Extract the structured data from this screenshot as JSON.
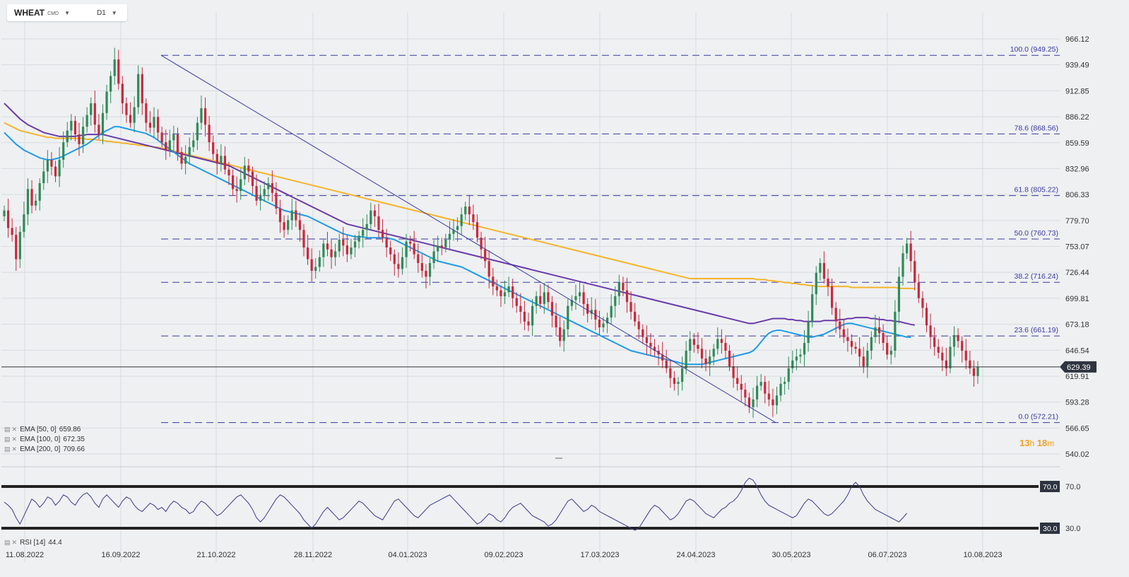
{
  "toolbar": {
    "symbol": "WHEAT",
    "symbol_sub": "CMD",
    "timeframe": "D1"
  },
  "indicators": {
    "ema50": {
      "label": "EMA [50, 0]",
      "value": "659.86",
      "color": "#1e9be6"
    },
    "ema100": {
      "label": "EMA [100, 0]",
      "value": "672.35",
      "color": "#6a3aa8"
    },
    "ema200": {
      "label": "EMA [200, 0]",
      "value": "709.66",
      "color": "#f5b428"
    },
    "rsi": {
      "label": "RSI [14]",
      "value": "44.4",
      "color": "#3a3a8a",
      "upper": "70.0",
      "lower": "30.0"
    }
  },
  "timer": {
    "hours": "13",
    "h_unit": "h",
    "minutes": "18",
    "m_unit": "m"
  },
  "colors": {
    "bull": "#2e8b57",
    "bear": "#c8283c",
    "fib": "#3a3aa0",
    "grid": "#d8dce0"
  },
  "chart_data": {
    "type": "candlestick",
    "symbol": "WHEAT",
    "timeframe": "D1",
    "current_price": "629.39",
    "ylim": [
      540.02,
      966.12
    ],
    "y_ticks": [
      "966.12",
      "939.49",
      "912.85",
      "886.22",
      "859.59",
      "832.96",
      "806.33",
      "779.70",
      "753.07",
      "726.44",
      "699.81",
      "673.18",
      "646.54",
      "619.91",
      "593.28",
      "566.65",
      "540.02"
    ],
    "x_ticks": [
      "11.08.2022",
      "16.09.2022",
      "21.10.2022",
      "28.11.2022",
      "04.01.2023",
      "09.02.2023",
      "17.03.2023",
      "24.04.2023",
      "30.05.2023",
      "06.07.2023",
      "10.08.2023"
    ],
    "fibonacci": [
      {
        "label": "100.0 (949.25)",
        "value": 949.25
      },
      {
        "label": "78.6 (868.56)",
        "value": 868.56
      },
      {
        "label": "61.8 (805.22)",
        "value": 805.22
      },
      {
        "label": "50.0 (760.73)",
        "value": 760.73
      },
      {
        "label": "38.2 (716.24)",
        "value": 716.24
      },
      {
        "label": "23.6 (661.19)",
        "value": 661.19
      },
      {
        "label": "0.0 (572.21)",
        "value": 572.21
      }
    ],
    "trendline": {
      "from": {
        "date": "05.10.2022",
        "value": 949.25
      },
      "to": {
        "date": "31.05.2023",
        "value": 572.21
      }
    },
    "close_series": [
      790,
      772,
      765,
      740,
      768,
      786,
      812,
      795,
      800,
      818,
      830,
      842,
      835,
      825,
      842,
      860,
      872,
      882,
      868,
      858,
      876,
      888,
      900,
      878,
      868,
      890,
      912,
      928,
      945,
      920,
      900,
      888,
      880,
      896,
      930,
      900,
      880,
      875,
      886,
      870,
      860,
      852,
      862,
      868,
      850,
      838,
      845,
      855,
      862,
      880,
      895,
      878,
      860,
      848,
      838,
      846,
      832,
      826,
      812,
      810,
      822,
      836,
      830,
      815,
      800,
      806,
      812,
      818,
      808,
      792,
      778,
      770,
      780,
      790,
      780,
      770,
      752,
      740,
      728,
      732,
      742,
      756,
      750,
      742,
      748,
      760,
      754,
      745,
      752,
      758,
      764,
      770,
      776,
      790,
      784,
      770,
      762,
      752,
      745,
      735,
      730,
      742,
      758,
      756,
      745,
      736,
      728,
      722,
      736,
      748,
      754,
      752,
      760,
      766,
      770,
      774,
      786,
      794,
      786,
      778,
      762,
      750,
      738,
      722,
      712,
      708,
      702,
      706,
      712,
      700,
      692,
      686,
      676,
      672,
      692,
      702,
      694,
      706,
      696,
      682,
      670,
      656,
      668,
      692,
      698,
      702,
      706,
      694,
      684,
      688,
      678,
      670,
      674,
      680,
      692,
      702,
      716,
      708,
      696,
      686,
      676,
      668,
      660,
      654,
      650,
      646,
      642,
      636,
      628,
      618,
      612,
      614,
      628,
      646,
      658,
      652,
      648,
      638,
      632,
      640,
      648,
      658,
      654,
      646,
      630,
      618,
      612,
      606,
      598,
      588,
      596,
      610,
      614,
      602,
      596,
      590,
      600,
      612,
      614,
      628,
      636,
      640,
      642,
      654,
      676,
      704,
      726,
      736,
      720,
      712,
      690,
      676,
      668,
      660,
      656,
      650,
      648,
      640,
      630,
      646,
      660,
      670,
      664,
      654,
      642,
      646,
      686,
      722,
      746,
      756,
      738,
      716,
      700,
      690,
      672,
      660,
      650,
      644,
      636,
      628,
      650,
      662,
      656,
      646,
      636,
      628,
      620,
      629.39
    ],
    "ema50": [
      870,
      866,
      862,
      858,
      855,
      852,
      850,
      848,
      846,
      844,
      843,
      842,
      842,
      843,
      844,
      846,
      848,
      850,
      852,
      854,
      856,
      858,
      861,
      864,
      867,
      870,
      872,
      874,
      876,
      876,
      875,
      874,
      873,
      872,
      871,
      870,
      869,
      867,
      865,
      862,
      859,
      856,
      853,
      850,
      847,
      844,
      841,
      838,
      836,
      834,
      832,
      830,
      828,
      826,
      824,
      822,
      820,
      818,
      816,
      814,
      812,
      810,
      808,
      806,
      804,
      802,
      800,
      798,
      796,
      794,
      792,
      790,
      789,
      788,
      787,
      786,
      785,
      784,
      782,
      780,
      778,
      776,
      774,
      772,
      770,
      768,
      766,
      765,
      764,
      763,
      763,
      763,
      762,
      762,
      762,
      762,
      762,
      762,
      761,
      760,
      758,
      756,
      754,
      752,
      750,
      748,
      746,
      744,
      742,
      740,
      738,
      737,
      736,
      735,
      734,
      733,
      732,
      730,
      728,
      726,
      724,
      722,
      720,
      718,
      716,
      714,
      712,
      710,
      708,
      706,
      704,
      702,
      700,
      698,
      696,
      694,
      692,
      690,
      688,
      686,
      684,
      682,
      680,
      678,
      676,
      674,
      672,
      670,
      668,
      666,
      664,
      662,
      660,
      658,
      656,
      654,
      652,
      650,
      648,
      646,
      645,
      644,
      643,
      642,
      641,
      640,
      639,
      638,
      637,
      636,
      635,
      634,
      633,
      632,
      632,
      632,
      632,
      632,
      633,
      634,
      635,
      636,
      637,
      638,
      639,
      640,
      641,
      642,
      643,
      644,
      646,
      650,
      655,
      660,
      664,
      666,
      667,
      667,
      666,
      665,
      664,
      663,
      662,
      661,
      660,
      660,
      661,
      662,
      663,
      665,
      667,
      669,
      671,
      673,
      674,
      674,
      673,
      672,
      671,
      670,
      669,
      668,
      667,
      666,
      665,
      664,
      663,
      662,
      661,
      660,
      659.86
    ],
    "ema100": [
      900,
      896,
      892,
      888,
      884,
      881,
      878,
      876,
      874,
      872,
      870,
      869,
      868,
      867,
      866,
      866,
      866,
      866,
      866,
      867,
      867,
      868,
      868,
      868,
      868,
      868,
      867,
      866,
      865,
      864,
      863,
      862,
      861,
      860,
      859,
      858,
      857,
      856,
      855,
      854,
      853,
      852,
      851,
      850,
      849,
      848,
      847,
      846,
      845,
      844,
      843,
      842,
      841,
      840,
      839,
      838,
      837,
      836,
      834,
      832,
      830,
      828,
      826,
      824,
      822,
      820,
      818,
      816,
      814,
      812,
      810,
      808,
      806,
      804,
      802,
      800,
      798,
      796,
      794,
      792,
      790,
      788,
      786,
      784,
      782,
      780,
      778,
      776,
      775,
      774,
      773,
      772,
      771,
      770,
      769,
      768,
      767,
      766,
      765,
      764,
      763,
      762,
      761,
      760,
      759,
      758,
      757,
      756,
      755,
      754,
      753,
      752,
      751,
      750,
      749,
      748,
      747,
      746,
      745,
      744,
      743,
      742,
      741,
      740,
      739,
      738,
      737,
      736,
      735,
      734,
      733,
      732,
      731,
      730,
      729,
      728,
      727,
      726,
      725,
      724,
      723,
      722,
      721,
      720,
      719,
      718,
      717,
      716,
      715,
      714,
      713,
      712,
      711,
      710,
      709,
      708,
      707,
      706,
      705,
      704,
      703,
      702,
      701,
      700,
      699,
      698,
      697,
      696,
      695,
      694,
      693,
      692,
      691,
      690,
      689,
      688,
      687,
      686,
      685,
      684,
      683,
      682,
      681,
      680,
      679,
      678,
      677,
      676,
      675,
      674,
      674,
      675,
      676,
      677,
      678,
      679,
      679,
      679,
      679,
      678,
      678,
      677,
      677,
      676,
      676,
      676,
      676,
      676,
      677,
      677,
      677,
      677,
      678,
      678,
      679,
      679,
      680,
      680,
      680,
      680,
      679,
      679,
      678,
      678,
      677,
      677,
      676,
      676,
      675,
      674,
      673,
      672.35
    ],
    "ema200": [
      880,
      878,
      876,
      874,
      872,
      871,
      870,
      869,
      868,
      867,
      866,
      865,
      865,
      864,
      864,
      864,
      864,
      864,
      864,
      864,
      864,
      863,
      863,
      863,
      862,
      862,
      861,
      861,
      860,
      860,
      859,
      859,
      858,
      858,
      857,
      857,
      856,
      856,
      855,
      855,
      854,
      853,
      852,
      851,
      850,
      849,
      848,
      847,
      846,
      845,
      844,
      843,
      842,
      841,
      840,
      839,
      838,
      837,
      836,
      835,
      834,
      833,
      832,
      831,
      830,
      829,
      828,
      827,
      826,
      825,
      824,
      823,
      822,
      821,
      820,
      819,
      818,
      817,
      816,
      815,
      814,
      813,
      812,
      811,
      810,
      809,
      808,
      807,
      806,
      805,
      804,
      803,
      802,
      801,
      800,
      799,
      798,
      797,
      796,
      795,
      794,
      793,
      792,
      791,
      790,
      789,
      788,
      787,
      786,
      785,
      784,
      783,
      782,
      781,
      780,
      779,
      778,
      777,
      776,
      775,
      774,
      773,
      772,
      771,
      770,
      769,
      768,
      767,
      766,
      765,
      764,
      763,
      762,
      761,
      760,
      759,
      758,
      757,
      756,
      755,
      754,
      753,
      752,
      751,
      750,
      749,
      748,
      747,
      746,
      745,
      744,
      743,
      742,
      741,
      740,
      739,
      738,
      737,
      736,
      735,
      734,
      733,
      732,
      731,
      730,
      729,
      728,
      727,
      726,
      725,
      724,
      723,
      722,
      721,
      720,
      720,
      720,
      720,
      720,
      720,
      720,
      720,
      720,
      720,
      720,
      720,
      720,
      720,
      720,
      720,
      720,
      719,
      719,
      719,
      718,
      718,
      717,
      717,
      716,
      716,
      715,
      715,
      714,
      714,
      713,
      713,
      712,
      712,
      712,
      712,
      712,
      712,
      712,
      712,
      712,
      711,
      711,
      711,
      711,
      711,
      711,
      711,
      711,
      711,
      711,
      711,
      711,
      710,
      710,
      710,
      710,
      709.66
    ],
    "rsi": [
      55,
      52,
      48,
      40,
      34,
      42,
      50,
      58,
      55,
      50,
      54,
      60,
      58,
      52,
      56,
      62,
      60,
      55,
      52,
      58,
      62,
      64,
      60,
      54,
      50,
      58,
      62,
      58,
      54,
      50,
      56,
      60,
      58,
      52,
      48,
      46,
      50,
      54,
      52,
      48,
      50,
      46,
      52,
      56,
      54,
      50,
      48,
      44,
      46,
      52,
      56,
      54,
      50,
      46,
      42,
      44,
      48,
      52,
      56,
      60,
      62,
      58,
      54,
      48,
      40,
      36,
      40,
      46,
      52,
      58,
      62,
      60,
      56,
      52,
      48,
      44,
      38,
      34,
      30,
      34,
      40,
      46,
      50,
      46,
      42,
      38,
      40,
      44,
      48,
      52,
      56,
      54,
      50,
      46,
      42,
      40,
      38,
      44,
      50,
      56,
      58,
      54,
      50,
      46,
      42,
      40,
      44,
      48,
      52,
      54,
      56,
      58,
      60,
      62,
      58,
      54,
      50,
      46,
      42,
      38,
      34,
      36,
      40,
      44,
      42,
      38,
      36,
      40,
      46,
      50,
      52,
      54,
      50,
      46,
      42,
      40,
      38,
      36,
      32,
      34,
      38,
      44,
      50,
      56,
      58,
      54,
      50,
      46,
      48,
      52,
      50,
      46,
      44,
      42,
      40,
      38,
      36,
      34,
      32,
      30,
      28,
      30,
      36,
      42,
      48,
      52,
      50,
      46,
      42,
      38,
      40,
      44,
      50,
      56,
      58,
      56,
      52,
      48,
      44,
      42,
      40,
      44,
      48,
      50,
      54,
      56,
      60,
      66,
      74,
      78,
      76,
      70,
      62,
      56,
      52,
      50,
      48,
      46,
      44,
      42,
      40,
      42,
      48,
      54,
      58,
      56,
      52,
      48,
      44,
      42,
      44,
      48,
      52,
      56,
      62,
      70,
      74,
      70,
      62,
      56,
      52,
      48,
      46,
      44,
      42,
      40,
      38,
      36,
      40,
      44.4
    ]
  }
}
